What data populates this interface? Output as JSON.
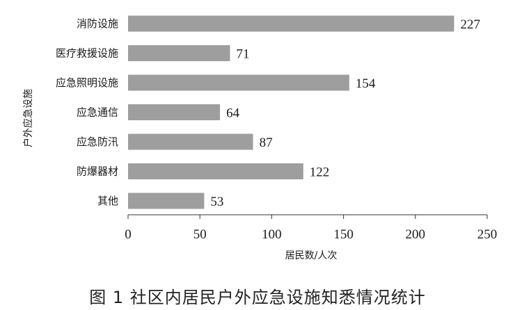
{
  "caption": "图 1 社区内居民户外应急设施知悉情况统计",
  "colors": {
    "bar": "#9e9e9e",
    "axis": "#333333",
    "text": "#1a1a1a"
  },
  "chart_data": {
    "type": "bar",
    "orientation": "horizontal",
    "categories": [
      "消防设施",
      "医疗救援设施",
      "应急照明设施",
      "应急通信",
      "应急防汛",
      "防爆器材",
      "其他"
    ],
    "values": [
      227,
      71,
      154,
      64,
      87,
      122,
      53
    ],
    "title": "",
    "xlabel": "居民数/人次",
    "ylabel": "户外应急设施",
    "xlim": [
      0,
      250
    ],
    "xticks": [
      0,
      50,
      100,
      150,
      200,
      250
    ],
    "grid": false,
    "legend": "none",
    "data_labels": true
  }
}
